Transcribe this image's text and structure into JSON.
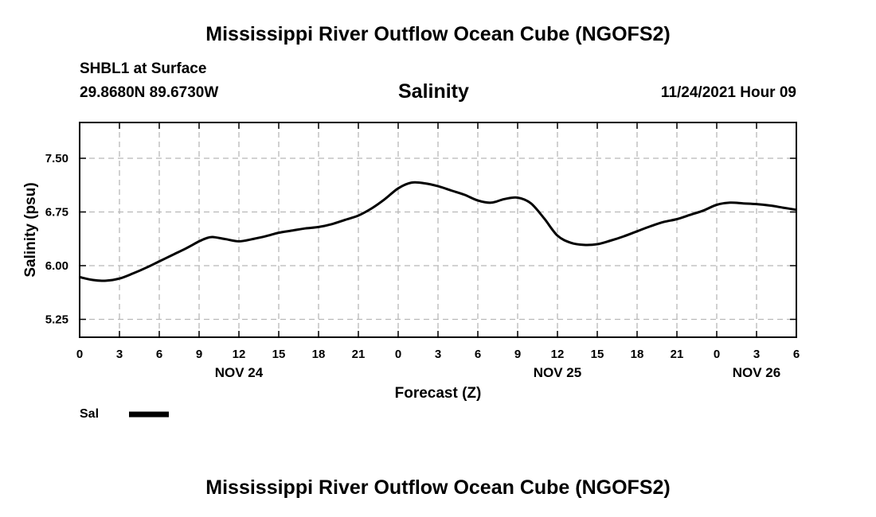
{
  "page": {
    "title_top": "Mississippi River Outflow Ocean Cube (NGOFS2)",
    "title_bottom": "Mississippi River Outflow Ocean Cube (NGOFS2)",
    "station": "SHBL1 at Surface",
    "coords": "29.8680N  89.6730W",
    "chart_name": "Salinity",
    "timestamp": "11/24/2021 Hour 09"
  },
  "chart_data": {
    "type": "line",
    "title": "Salinity",
    "xlabel": "Forecast (Z)",
    "ylabel": "Salinity (psu)",
    "xlim": [
      0,
      54
    ],
    "ylim": [
      5.0,
      8.0
    ],
    "grid": true,
    "y_ticks": [
      5.25,
      6.0,
      6.75,
      7.5
    ],
    "y_tick_labels": [
      "5.25",
      "6.00",
      "6.75",
      "7.50"
    ],
    "x_ticks": [
      0,
      3,
      6,
      9,
      12,
      15,
      18,
      21,
      24,
      27,
      30,
      33,
      36,
      39,
      42,
      45,
      48,
      51,
      54
    ],
    "x_tick_labels": [
      "0",
      "3",
      "6",
      "9",
      "12",
      "15",
      "18",
      "21",
      "0",
      "3",
      "6",
      "9",
      "12",
      "15",
      "18",
      "21",
      "0",
      "3",
      "6"
    ],
    "date_labels": [
      {
        "x": 12,
        "label": "NOV 24"
      },
      {
        "x": 36,
        "label": "NOV 25"
      },
      {
        "x": 51,
        "label": "NOV 26"
      }
    ],
    "legend": {
      "position": "bottom-left",
      "label": "Sal"
    },
    "series": [
      {
        "name": "Sal",
        "x": [
          0,
          1,
          2,
          3,
          4,
          5,
          6,
          7,
          8,
          9,
          9.5,
          10,
          11,
          12,
          13,
          14,
          15,
          16,
          17,
          18,
          19,
          20,
          21,
          22,
          23,
          24,
          25,
          26,
          27,
          28,
          29,
          30,
          31,
          32,
          33,
          34,
          35,
          36,
          37,
          38,
          39,
          40,
          41,
          42,
          43,
          44,
          45,
          46,
          47,
          48,
          49,
          50,
          51,
          52,
          53,
          54
        ],
        "y": [
          5.84,
          5.8,
          5.79,
          5.82,
          5.89,
          5.97,
          6.06,
          6.15,
          6.24,
          6.34,
          6.38,
          6.4,
          6.37,
          6.34,
          6.37,
          6.41,
          6.46,
          6.49,
          6.52,
          6.54,
          6.58,
          6.64,
          6.7,
          6.8,
          6.93,
          7.08,
          7.16,
          7.15,
          7.11,
          7.05,
          6.99,
          6.91,
          6.88,
          6.93,
          6.95,
          6.87,
          6.66,
          6.42,
          6.32,
          6.29,
          6.3,
          6.35,
          6.41,
          6.48,
          6.55,
          6.61,
          6.65,
          6.71,
          6.77,
          6.85,
          6.88,
          6.87,
          6.86,
          6.84,
          6.81,
          6.78
        ]
      }
    ]
  }
}
